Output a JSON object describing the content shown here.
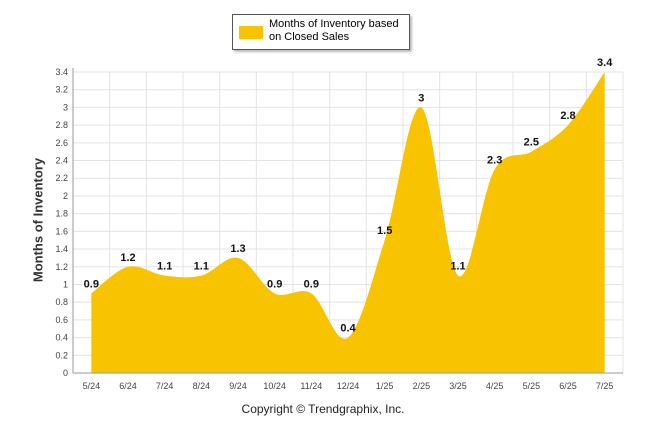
{
  "chart_data": {
    "type": "area",
    "categories": [
      "5/24",
      "6/24",
      "7/24",
      "8/24",
      "9/24",
      "10/24",
      "11/24",
      "12/24",
      "1/25",
      "2/25",
      "3/25",
      "4/25",
      "5/25",
      "6/25",
      "7/25"
    ],
    "series": [
      {
        "name": "Months of Inventory based on Closed Sales",
        "values": [
          0.9,
          1.2,
          1.1,
          1.1,
          1.3,
          0.9,
          0.9,
          0.4,
          1.5,
          3,
          1.1,
          2.3,
          2.5,
          2.8,
          3.4
        ]
      }
    ],
    "ylabel": "Months of Inventory",
    "xlabel": "",
    "ylim": [
      0,
      3.4
    ],
    "yticks": [
      "0",
      "0.2",
      "0.4",
      "0.6",
      "0.8",
      "1",
      "1.2",
      "1.4",
      "1.6",
      "1.8",
      "2",
      "2.2",
      "2.4",
      "2.6",
      "2.8",
      "3",
      "3.2",
      "3.4"
    ],
    "grid": true,
    "legend_position": "top-center",
    "data_labels": [
      "0.9",
      "1.2",
      "1.1",
      "1.1",
      "1.3",
      "0.9",
      "0.9",
      "0.4",
      "1.5",
      "3",
      "1.1",
      "2.3",
      "2.5",
      "2.8",
      "3.4"
    ],
    "colors": {
      "fill": "#F8C300",
      "grid": "#e3e3e3",
      "axis": "#999999"
    }
  },
  "legend": {
    "label": "Months of Inventory based on Closed Sales"
  },
  "footer": {
    "copyright": "Copyright © Trendgraphix, Inc."
  }
}
